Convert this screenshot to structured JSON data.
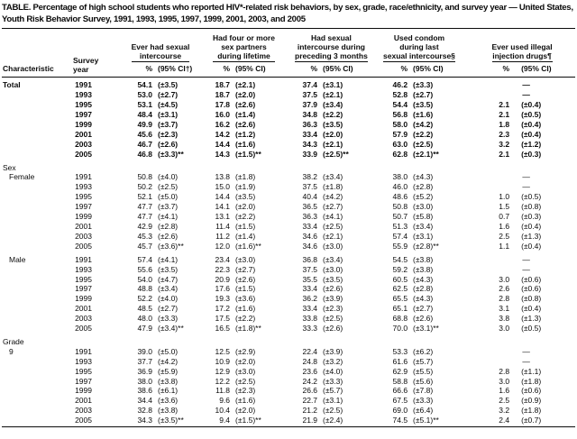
{
  "title": "TABLE. Percentage of high school students who reported HIV*-related risk behaviors, by sex, grade, race/ethnicity, and survey year — United States, Youth Risk Behavior Survey, 1991, 1993, 1995, 1997, 1999, 2001, 2003, and 2005",
  "table": {
    "characteristic_header": "Characteristic",
    "survey_year_header_line1": "Survey",
    "survey_year_header_line2": "year",
    "no_data_symbol": "—",
    "groups": [
      {
        "title_lines": [
          "Ever had sexual",
          "intercourse"
        ],
        "pct_label": "%",
        "ci_label": "(95% CI†)"
      },
      {
        "title_lines": [
          "Had four or more",
          "sex partners",
          "during lifetime"
        ],
        "pct_label": "%",
        "ci_label": "(95% CI)"
      },
      {
        "title_lines": [
          "Had sexual",
          "intercourse during",
          "preceding 3 months"
        ],
        "pct_label": "%",
        "ci_label": "(95% CI)"
      },
      {
        "title_lines": [
          "Used condom",
          "during last",
          "sexual intercourse§"
        ],
        "pct_label": "%",
        "ci_label": "(95% CI)"
      },
      {
        "title_lines": [
          "Ever used illegal",
          "injection drugs¶"
        ],
        "pct_label": "%",
        "ci_label": "(95% CI)"
      }
    ],
    "sections": [
      {
        "label": "Total",
        "bold": true,
        "indent": false,
        "rows": [
          {
            "year": "1991",
            "cells": [
              [
                "54.1",
                "(±3.5)"
              ],
              [
                "18.7",
                "(±2.1)"
              ],
              [
                "37.4",
                "(±3.1)"
              ],
              [
                "46.2",
                "(±3.3)"
              ],
              [
                "—"
              ]
            ]
          },
          {
            "year": "1993",
            "cells": [
              [
                "53.0",
                "(±2.7)"
              ],
              [
                "18.7",
                "(±2.0)"
              ],
              [
                "37.5",
                "(±2.1)"
              ],
              [
                "52.8",
                "(±2.7)"
              ],
              [
                "—"
              ]
            ]
          },
          {
            "year": "1995",
            "cells": [
              [
                "53.1",
                "(±4.5)"
              ],
              [
                "17.8",
                "(±2.6)"
              ],
              [
                "37.9",
                "(±3.4)"
              ],
              [
                "54.4",
                "(±3.5)"
              ],
              [
                "2.1",
                "(±0.4)"
              ]
            ]
          },
          {
            "year": "1997",
            "cells": [
              [
                "48.4",
                "(±3.1)"
              ],
              [
                "16.0",
                "(±1.4)"
              ],
              [
                "34.8",
                "(±2.2)"
              ],
              [
                "56.8",
                "(±1.6)"
              ],
              [
                "2.1",
                "(±0.5)"
              ]
            ]
          },
          {
            "year": "1999",
            "cells": [
              [
                "49.9",
                "(±3.7)"
              ],
              [
                "16.2",
                "(±2.6)"
              ],
              [
                "36.3",
                "(±3.5)"
              ],
              [
                "58.0",
                "(±4.2)"
              ],
              [
                "1.8",
                "(±0.4)"
              ]
            ]
          },
          {
            "year": "2001",
            "cells": [
              [
                "45.6",
                "(±2.3)"
              ],
              [
                "14.2",
                "(±1.2)"
              ],
              [
                "33.4",
                "(±2.0)"
              ],
              [
                "57.9",
                "(±2.2)"
              ],
              [
                "2.3",
                "(±0.4)"
              ]
            ]
          },
          {
            "year": "2003",
            "cells": [
              [
                "46.7",
                "(±2.6)"
              ],
              [
                "14.4",
                "(±1.6)"
              ],
              [
                "34.3",
                "(±2.1)"
              ],
              [
                "63.0",
                "(±2.5)"
              ],
              [
                "3.2",
                "(±1.2)"
              ]
            ]
          },
          {
            "year": "2005",
            "cells": [
              [
                "46.8",
                "(±3.3)**"
              ],
              [
                "14.3",
                "(±1.5)**"
              ],
              [
                "33.9",
                "(±2.5)**"
              ],
              [
                "62.8",
                "(±2.1)**"
              ],
              [
                "2.1",
                "(±0.3)"
              ]
            ]
          }
        ]
      },
      {
        "label": "Sex",
        "standalone": true,
        "gap": true
      },
      {
        "label": "Female",
        "indent": true,
        "rows": [
          {
            "year": "1991",
            "cells": [
              [
                "50.8",
                "(±4.0)"
              ],
              [
                "13.8",
                "(±1.8)"
              ],
              [
                "38.2",
                "(±3.4)"
              ],
              [
                "38.0",
                "(±4.3)"
              ],
              [
                "—"
              ]
            ]
          },
          {
            "year": "1993",
            "cells": [
              [
                "50.2",
                "(±2.5)"
              ],
              [
                "15.0",
                "(±1.9)"
              ],
              [
                "37.5",
                "(±1.8)"
              ],
              [
                "46.0",
                "(±2.8)"
              ],
              [
                "—"
              ]
            ]
          },
          {
            "year": "1995",
            "cells": [
              [
                "52.1",
                "(±5.0)"
              ],
              [
                "14.4",
                "(±3.5)"
              ],
              [
                "40.4",
                "(±4.2)"
              ],
              [
                "48.6",
                "(±5.2)"
              ],
              [
                "1.0",
                "(±0.5)"
              ]
            ]
          },
          {
            "year": "1997",
            "cells": [
              [
                "47.7",
                "(±3.7)"
              ],
              [
                "14.1",
                "(±2.0)"
              ],
              [
                "36.5",
                "(±2.7)"
              ],
              [
                "50.8",
                "(±3.0)"
              ],
              [
                "1.5",
                "(±0.8)"
              ]
            ]
          },
          {
            "year": "1999",
            "cells": [
              [
                "47.7",
                "(±4.1)"
              ],
              [
                "13.1",
                "(±2.2)"
              ],
              [
                "36.3",
                "(±4.1)"
              ],
              [
                "50.7",
                "(±5.8)"
              ],
              [
                "0.7",
                "(±0.3)"
              ]
            ]
          },
          {
            "year": "2001",
            "cells": [
              [
                "42.9",
                "(±2.8)"
              ],
              [
                "11.4",
                "(±1.5)"
              ],
              [
                "33.4",
                "(±2.5)"
              ],
              [
                "51.3",
                "(±3.4)"
              ],
              [
                "1.6",
                "(±0.4)"
              ]
            ]
          },
          {
            "year": "2003",
            "cells": [
              [
                "45.3",
                "(±2.6)"
              ],
              [
                "11.2",
                "(±1.4)"
              ],
              [
                "34.6",
                "(±2.1)"
              ],
              [
                "57.4",
                "(±3.1)"
              ],
              [
                "2.5",
                "(±1.3)"
              ]
            ]
          },
          {
            "year": "2005",
            "cells": [
              [
                "45.7",
                "(±3.6)**"
              ],
              [
                "12.0",
                "(±1.6)**"
              ],
              [
                "34.6",
                "(±3.0)"
              ],
              [
                "55.9",
                "(±2.8)**"
              ],
              [
                "1.1",
                "(±0.4)"
              ]
            ]
          }
        ]
      },
      {
        "label": "Male",
        "indent": true,
        "gap": true,
        "rows": [
          {
            "year": "1991",
            "cells": [
              [
                "57.4",
                "(±4.1)"
              ],
              [
                "23.4",
                "(±3.0)"
              ],
              [
                "36.8",
                "(±3.4)"
              ],
              [
                "54.5",
                "(±3.8)"
              ],
              [
                "—"
              ]
            ]
          },
          {
            "year": "1993",
            "cells": [
              [
                "55.6",
                "(±3.5)"
              ],
              [
                "22.3",
                "(±2.7)"
              ],
              [
                "37.5",
                "(±3.0)"
              ],
              [
                "59.2",
                "(±3.8)"
              ],
              [
                "—"
              ]
            ]
          },
          {
            "year": "1995",
            "cells": [
              [
                "54.0",
                "(±4.7)"
              ],
              [
                "20.9",
                "(±2.6)"
              ],
              [
                "35.5",
                "(±3.5)"
              ],
              [
                "60.5",
                "(±4.3)"
              ],
              [
                "3.0",
                "(±0.6)"
              ]
            ]
          },
          {
            "year": "1997",
            "cells": [
              [
                "48.8",
                "(±3.4)"
              ],
              [
                "17.6",
                "(±1.5)"
              ],
              [
                "33.4",
                "(±2.6)"
              ],
              [
                "62.5",
                "(±2.8)"
              ],
              [
                "2.6",
                "(±0.6)"
              ]
            ]
          },
          {
            "year": "1999",
            "cells": [
              [
                "52.2",
                "(±4.0)"
              ],
              [
                "19.3",
                "(±3.6)"
              ],
              [
                "36.2",
                "(±3.9)"
              ],
              [
                "65.5",
                "(±4.3)"
              ],
              [
                "2.8",
                "(±0.8)"
              ]
            ]
          },
          {
            "year": "2001",
            "cells": [
              [
                "48.5",
                "(±2.7)"
              ],
              [
                "17.2",
                "(±1.6)"
              ],
              [
                "33.4",
                "(±2.3)"
              ],
              [
                "65.1",
                "(±2.7)"
              ],
              [
                "3.1",
                "(±0.4)"
              ]
            ]
          },
          {
            "year": "2003",
            "cells": [
              [
                "48.0",
                "(±3.3)"
              ],
              [
                "17.5",
                "(±2.2)"
              ],
              [
                "33.8",
                "(±2.5)"
              ],
              [
                "68.8",
                "(±2.6)"
              ],
              [
                "3.8",
                "(±1.3)"
              ]
            ]
          },
          {
            "year": "2005",
            "cells": [
              [
                "47.9",
                "(±3.4)**"
              ],
              [
                "16.5",
                "(±1.8)**"
              ],
              [
                "33.3",
                "(±2.6)"
              ],
              [
                "70.0",
                "(±3.1)**"
              ],
              [
                "3.0",
                "(±0.5)"
              ]
            ]
          }
        ]
      },
      {
        "label": "Grade",
        "standalone": true,
        "gap": true
      },
      {
        "label": "9",
        "indent": true,
        "rows": [
          {
            "year": "1991",
            "cells": [
              [
                "39.0",
                "(±5.0)"
              ],
              [
                "12.5",
                "(±2.9)"
              ],
              [
                "22.4",
                "(±3.9)"
              ],
              [
                "53.3",
                "(±6.2)"
              ],
              [
                "—"
              ]
            ]
          },
          {
            "year": "1993",
            "cells": [
              [
                "37.7",
                "(±4.2)"
              ],
              [
                "10.9",
                "(±2.0)"
              ],
              [
                "24.8",
                "(±3.2)"
              ],
              [
                "61.6",
                "(±5.7)"
              ],
              [
                "—"
              ]
            ]
          },
          {
            "year": "1995",
            "cells": [
              [
                "36.9",
                "(±5.9)"
              ],
              [
                "12.9",
                "(±3.0)"
              ],
              [
                "23.6",
                "(±4.0)"
              ],
              [
                "62.9",
                "(±5.5)"
              ],
              [
                "2.8",
                "(±1.1)"
              ]
            ]
          },
          {
            "year": "1997",
            "cells": [
              [
                "38.0",
                "(±3.8)"
              ],
              [
                "12.2",
                "(±2.5)"
              ],
              [
                "24.2",
                "(±3.3)"
              ],
              [
                "58.8",
                "(±5.6)"
              ],
              [
                "3.0",
                "(±1.8)"
              ]
            ]
          },
          {
            "year": "1999",
            "cells": [
              [
                "38.6",
                "(±6.1)"
              ],
              [
                "11.8",
                "(±2.3)"
              ],
              [
                "26.6",
                "(±5.7)"
              ],
              [
                "66.6",
                "(±7.8)"
              ],
              [
                "1.6",
                "(±0.6)"
              ]
            ]
          },
          {
            "year": "2001",
            "cells": [
              [
                "34.4",
                "(±3.6)"
              ],
              [
                "9.6",
                "(±1.6)"
              ],
              [
                "22.7",
                "(±3.1)"
              ],
              [
                "67.5",
                "(±3.3)"
              ],
              [
                "2.5",
                "(±0.9)"
              ]
            ]
          },
          {
            "year": "2003",
            "cells": [
              [
                "32.8",
                "(±3.8)"
              ],
              [
                "10.4",
                "(±2.0)"
              ],
              [
                "21.2",
                "(±2.5)"
              ],
              [
                "69.0",
                "(±6.4)"
              ],
              [
                "3.2",
                "(±1.8)"
              ]
            ]
          },
          {
            "year": "2005",
            "cells": [
              [
                "34.3",
                "(±3.5)**"
              ],
              [
                "9.4",
                "(±1.5)**"
              ],
              [
                "21.9",
                "(±2.4)"
              ],
              [
                "74.5",
                "(±5.1)**"
              ],
              [
                "2.4",
                "(±0.7)"
              ]
            ]
          }
        ]
      }
    ]
  }
}
